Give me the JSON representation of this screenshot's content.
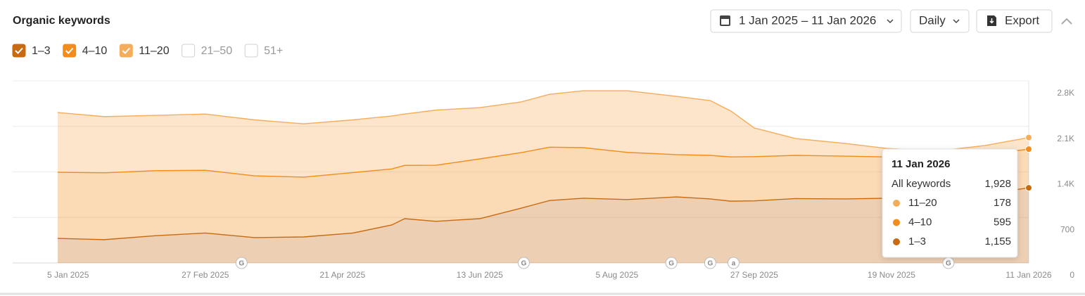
{
  "chart_data": {
    "type": "stacked-area",
    "title": "Organic keywords",
    "controls": {
      "date_range": "1 Jan 2025 – 11 Jan 2026",
      "interval": "Daily",
      "export": "Export",
      "unchecked": [
        "21–50",
        "51+"
      ]
    },
    "x": [
      "2025-01-01",
      "2025-01-19",
      "2025-02-08",
      "2025-02-27",
      "2025-03-18",
      "2025-04-06",
      "2025-04-25",
      "2025-05-10",
      "2025-05-15",
      "2025-05-27",
      "2025-06-13",
      "2025-06-29",
      "2025-07-10",
      "2025-07-23",
      "2025-08-09",
      "2025-08-28",
      "2025-09-10",
      "2025-09-18",
      "2025-09-27",
      "2025-10-13",
      "2025-11-01",
      "2025-11-17",
      "2025-12-06",
      "2025-12-25",
      "2026-01-11"
    ],
    "series": [
      {
        "name": "1–3",
        "color": "#c86a12",
        "values": [
          378,
          358,
          420,
          460,
          390,
          400,
          460,
          584,
          681,
          640,
          681,
          843,
          960,
          995,
          975,
          1016,
          984,
          950,
          955,
          990,
          984,
          995,
          1010,
          1059,
          1155
        ]
      },
      {
        "name": "4–10",
        "color": "#f28c1b",
        "values": [
          1016,
          1028,
          1000,
          965,
          950,
          920,
          930,
          861,
          819,
          862,
          919,
          854,
          820,
          778,
          725,
          649,
          670,
          680,
          680,
          664,
          659,
          635,
          610,
          606,
          595
        ]
      },
      {
        "name": "11–20",
        "color": "#f5ad5b",
        "values": [
          919,
          864,
          850,
          865,
          860,
          820,
          810,
          815,
          790,
          848,
          789,
          779,
          814,
          875,
          948,
          897,
          843,
          705,
          441,
          259,
          195,
          132,
          98,
          140,
          178
        ]
      }
    ],
    "xlim": [
      "2025-01-01",
      "2026-01-11"
    ],
    "xticks": [
      {
        "value": "2025-01-05",
        "label": "5 Jan 2025"
      },
      {
        "value": "2025-02-27",
        "label": "27 Feb 2025"
      },
      {
        "value": "2025-04-21",
        "label": "21 Apr 2025"
      },
      {
        "value": "2025-06-13",
        "label": "13 Jun 2025"
      },
      {
        "value": "2025-08-05",
        "label": "5 Aug 2025"
      },
      {
        "value": "2025-09-27",
        "label": "27 Sep 2025"
      },
      {
        "value": "2025-11-19",
        "label": "19 Nov 2025"
      },
      {
        "value": "2026-01-11",
        "label": "11 Jan 2026"
      }
    ],
    "ylim": [
      0,
      2800
    ],
    "yticks": [
      0,
      700,
      {
        "value": 1400,
        "label": "1.4K"
      },
      {
        "value": 2100,
        "label": "2.1K"
      },
      {
        "value": 2800,
        "label": "2.8K"
      }
    ],
    "grid": true,
    "annotations": [
      {
        "x": "2025-03-13",
        "label": "G"
      },
      {
        "x": "2025-06-30",
        "label": "G"
      },
      {
        "x": "2025-08-26",
        "label": "G"
      },
      {
        "x": "2025-09-10",
        "label": "G"
      },
      {
        "x": "2025-09-19",
        "label": "a"
      },
      {
        "x": "2025-12-11",
        "label": "G"
      }
    ],
    "tooltip": {
      "title": "11 Jan 2026",
      "total_label": "All keywords",
      "total": {
        "value": 1928,
        "label": "1,928"
      },
      "values": [
        178,
        595,
        {
          "value": 1155,
          "label": "1,155"
        }
      ]
    }
  }
}
